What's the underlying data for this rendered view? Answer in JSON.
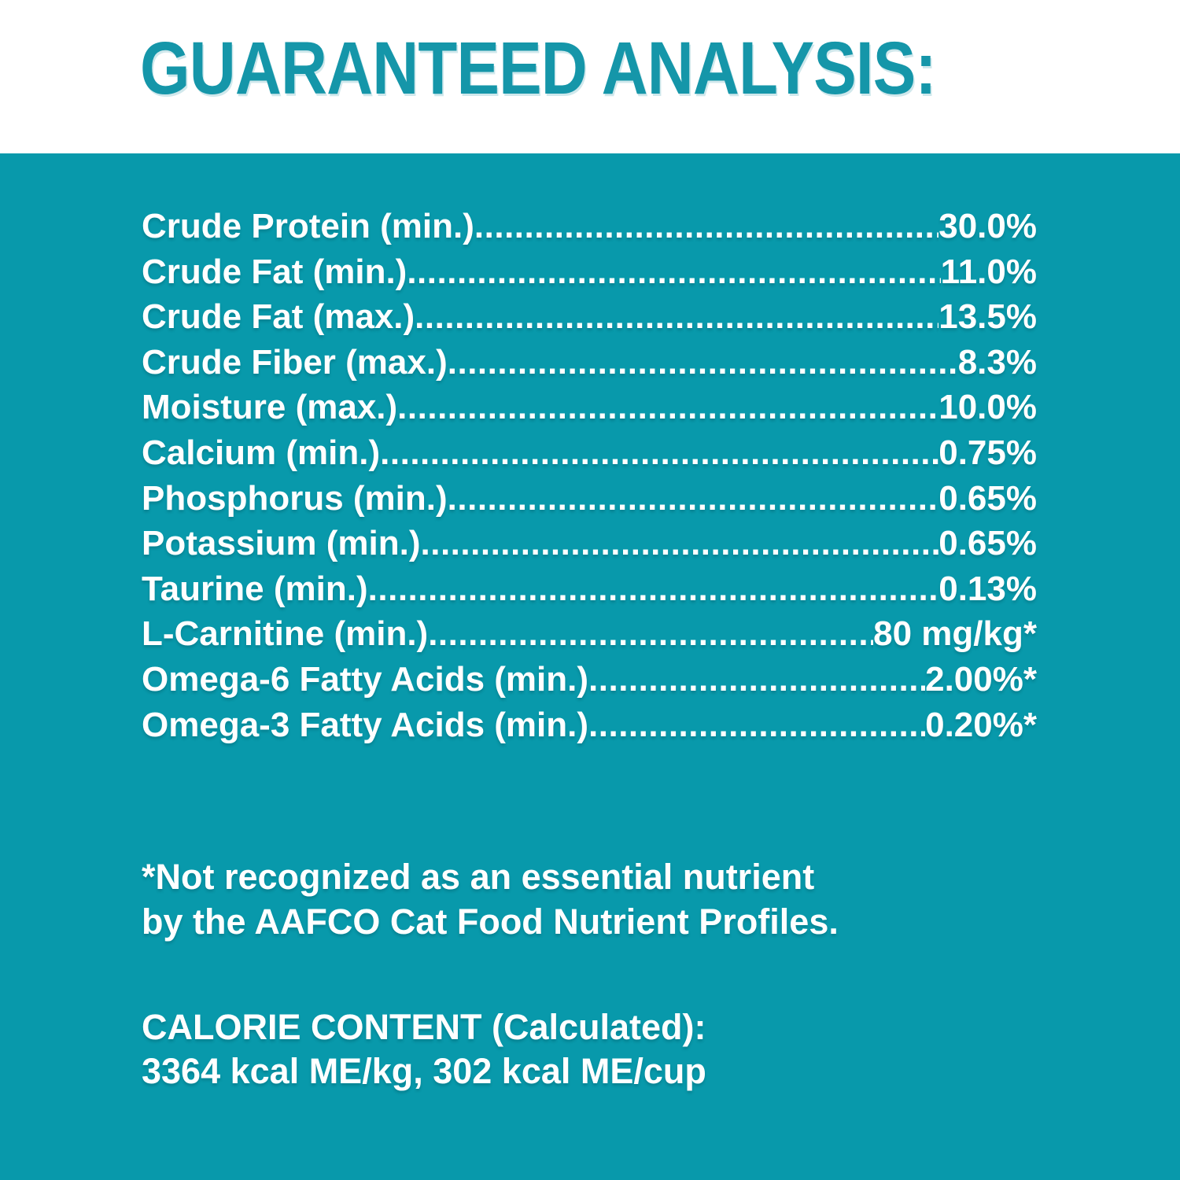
{
  "title": "GUARANTEED ANALYSIS:",
  "analysis": {
    "rows": [
      {
        "label": "Crude Protein (min.)",
        "value": "30.0%"
      },
      {
        "label": "Crude Fat (min.)",
        "value": "11.0%"
      },
      {
        "label": "Crude Fat (max.)",
        "value": "13.5%"
      },
      {
        "label": "Crude Fiber (max.)",
        "value": "8.3%"
      },
      {
        "label": "Moisture (max.)",
        "value": "10.0%"
      },
      {
        "label": "Calcium (min.)",
        "value": "0.75%"
      },
      {
        "label": "Phosphorus (min.)",
        "value": "0.65%"
      },
      {
        "label": "Potassium (min.)",
        "value": "0.65%"
      },
      {
        "label": "Taurine (min.)",
        "value": "0.13%"
      },
      {
        "label": "L-Carnitine (min.)",
        "value": "80 mg/kg*"
      },
      {
        "label": "Omega-6 Fatty Acids (min.)",
        "value": "2.00%*"
      },
      {
        "label": "Omega-3 Fatty Acids (min.)",
        "value": "0.20%*"
      }
    ]
  },
  "footnote": {
    "line1": "*Not recognized as an essential nutrient",
    "line2": "by the AAFCO Cat Food Nutrient Profiles."
  },
  "calorie": {
    "heading": "CALORIE CONTENT (Calculated):",
    "values": "3364 kcal ME/kg, 302 kcal ME/cup"
  },
  "colors": {
    "panel_teal": "#0899ab",
    "title_teal": "#1596a9",
    "text_white": "#ffffff"
  }
}
